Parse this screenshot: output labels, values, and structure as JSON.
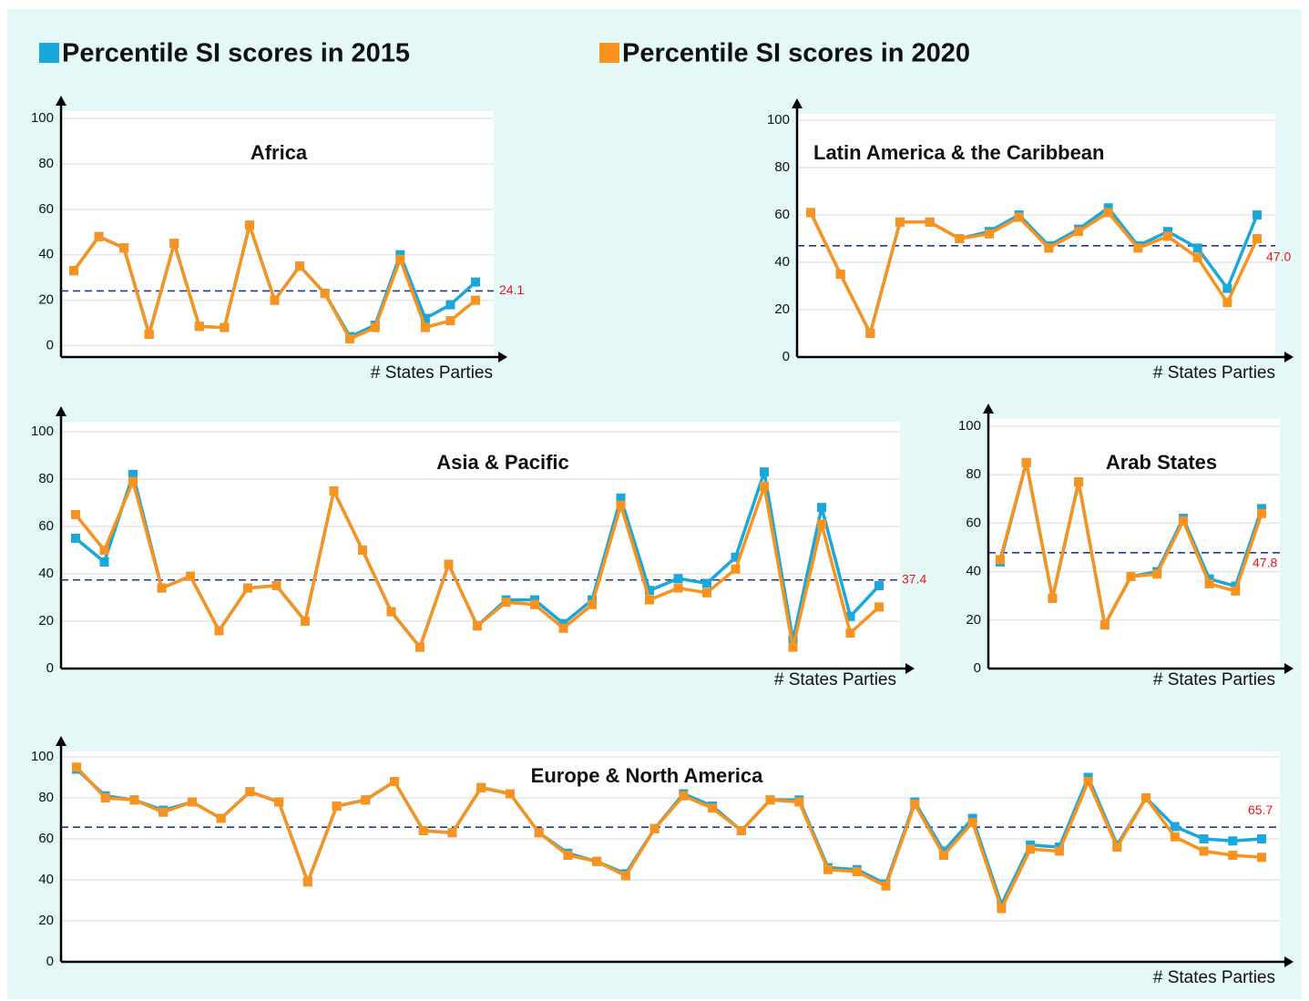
{
  "legend": [
    {
      "name": "Percentile SI scores in 2015",
      "color": "#1aa7dc"
    },
    {
      "name": "Percentile SI scores in 2020",
      "color": "#f7931e"
    }
  ],
  "chart_data": [
    {
      "type": "line",
      "title": "Africa",
      "x_label": "# States Parties",
      "ylim": [
        -5,
        100
      ],
      "yticks": [
        0,
        20,
        40,
        60,
        80,
        100
      ],
      "grid": true,
      "reference_line": 24.1,
      "series": [
        {
          "color": "#1aa7dc",
          "values": [
            33,
            48,
            43,
            5,
            45,
            8.5,
            8,
            53,
            20,
            35,
            23,
            4,
            9,
            40,
            12,
            18,
            28
          ]
        },
        {
          "color": "#f7931e",
          "values": [
            33,
            48,
            43,
            5,
            45,
            8.5,
            8,
            53,
            20,
            35,
            23,
            3,
            8,
            38,
            8,
            11,
            20
          ]
        }
      ]
    },
    {
      "type": "line",
      "title": "Latin America & the Caribbean",
      "x_label": "# States Parties",
      "ylim": [
        0,
        100
      ],
      "yticks": [
        0,
        20,
        40,
        60,
        80,
        100
      ],
      "grid": true,
      "reference_line": {
        "value": 47,
        "label": "47.0"
      },
      "series": [
        {
          "color": "#1aa7dc",
          "values": [
            61,
            35,
            10,
            57,
            57,
            50,
            53,
            60,
            47,
            54,
            63,
            47,
            53,
            46,
            29,
            60
          ]
        },
        {
          "color": "#f7931e",
          "values": [
            61,
            35,
            10,
            57,
            57,
            50,
            52,
            59,
            46,
            53,
            61,
            46,
            51,
            42,
            23,
            50
          ]
        }
      ]
    },
    {
      "type": "line",
      "title": "Asia & Pacific",
      "x_label": "# States Parties",
      "ylim": [
        0,
        100
      ],
      "yticks": [
        0,
        20,
        40,
        60,
        80,
        100
      ],
      "grid": true,
      "reference_line": 37.4,
      "series": [
        {
          "color": "#1aa7dc",
          "values": [
            55,
            45,
            82,
            34,
            39,
            16,
            34,
            35,
            20,
            75,
            50,
            24,
            9,
            44,
            18,
            29,
            29,
            19,
            29,
            72,
            33,
            38,
            36,
            47,
            83,
            12,
            68,
            22,
            35
          ]
        },
        {
          "color": "#f7931e",
          "values": [
            65,
            50,
            79,
            34,
            39,
            16,
            34,
            35,
            20,
            75,
            50,
            24,
            9,
            44,
            18,
            28,
            27,
            17,
            27,
            69,
            29,
            34,
            32,
            42,
            77,
            9,
            61,
            15,
            26
          ]
        }
      ]
    },
    {
      "type": "line",
      "title": "Arab States",
      "x_label": "# States Parties",
      "ylim": [
        0,
        100
      ],
      "yticks": [
        0,
        20,
        40,
        60,
        80,
        100
      ],
      "grid": true,
      "reference_line": 47.8,
      "series": [
        {
          "color": "#1aa7dc",
          "values": [
            44,
            85,
            29,
            77,
            18,
            38,
            40,
            62,
            37,
            34,
            66
          ]
        },
        {
          "color": "#f7931e",
          "values": [
            45,
            85,
            29,
            77,
            18,
            38,
            39,
            61,
            35,
            32,
            64
          ]
        }
      ]
    },
    {
      "type": "line",
      "title": "Europe & North America",
      "x_label": "# States Parties",
      "ylim": [
        0,
        100
      ],
      "yticks": [
        0,
        20,
        40,
        60,
        80,
        100
      ],
      "grid": true,
      "reference_line": 65.7,
      "series": [
        {
          "color": "#1aa7dc",
          "values": [
            94,
            81,
            79,
            74,
            78,
            70,
            83,
            78,
            39,
            76,
            79,
            88,
            64,
            63,
            85,
            82,
            63,
            53,
            49,
            43,
            65,
            82,
            76,
            64,
            79,
            79,
            46,
            45,
            38,
            78,
            54,
            70,
            28,
            57,
            56,
            90,
            57,
            80,
            66,
            60,
            59,
            60
          ]
        },
        {
          "color": "#f7931e",
          "values": [
            95,
            80,
            79,
            73,
            78,
            70,
            83,
            78,
            39,
            76,
            79,
            88,
            64,
            63,
            85,
            82,
            63,
            52,
            49,
            42,
            65,
            81,
            75,
            64,
            79,
            78,
            45,
            44,
            37,
            77,
            52,
            68,
            26,
            55,
            54,
            88,
            56,
            80,
            61,
            54,
            52,
            51
          ]
        }
      ]
    }
  ]
}
